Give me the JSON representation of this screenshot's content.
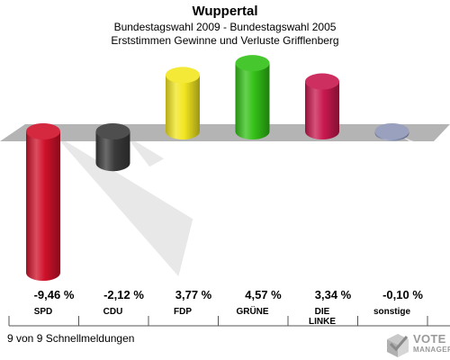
{
  "header": {
    "title": "Wuppertal",
    "subtitle_line1": "Bundestagswahl 2009 - Bundestagswahl 2005",
    "subtitle_line2": "Erststimmen Gewinne und Verluste Grifflenberg"
  },
  "chart_data": {
    "type": "bar",
    "title": "Wuppertal",
    "subtitle": "Bundestagswahl 2009 - Bundestagswahl 2005 / Erststimmen Gewinne und Verluste Grifflenberg",
    "categories": [
      "SPD",
      "CDU",
      "FDP",
      "GRÜNE",
      "DIE LINKE",
      "sonstige"
    ],
    "category_label_lines": [
      [
        "SPD"
      ],
      [
        "CDU"
      ],
      [
        "FDP"
      ],
      [
        "GRÜNE"
      ],
      [
        "DIE",
        "LINKE"
      ],
      [
        "sonstige"
      ]
    ],
    "values": [
      -9.46,
      -2.12,
      3.77,
      4.57,
      3.34,
      -0.1
    ],
    "value_labels": [
      "-9,46 %",
      "-2,12 %",
      "3,77 %",
      "4,57 %",
      "3,34 %",
      "-0,10 %"
    ],
    "colors": [
      "#d0112b",
      "#3a3a3a",
      "#f2e620",
      "#33c117",
      "#c8184f",
      "#8e97b8"
    ],
    "unit": "%",
    "baseline": 0,
    "grid": false,
    "legend": "none"
  },
  "footer": {
    "note": "9 von 9 Schnellmeldungen"
  },
  "logo": {
    "line1": "VOTE",
    "line2": "MANAGER"
  }
}
